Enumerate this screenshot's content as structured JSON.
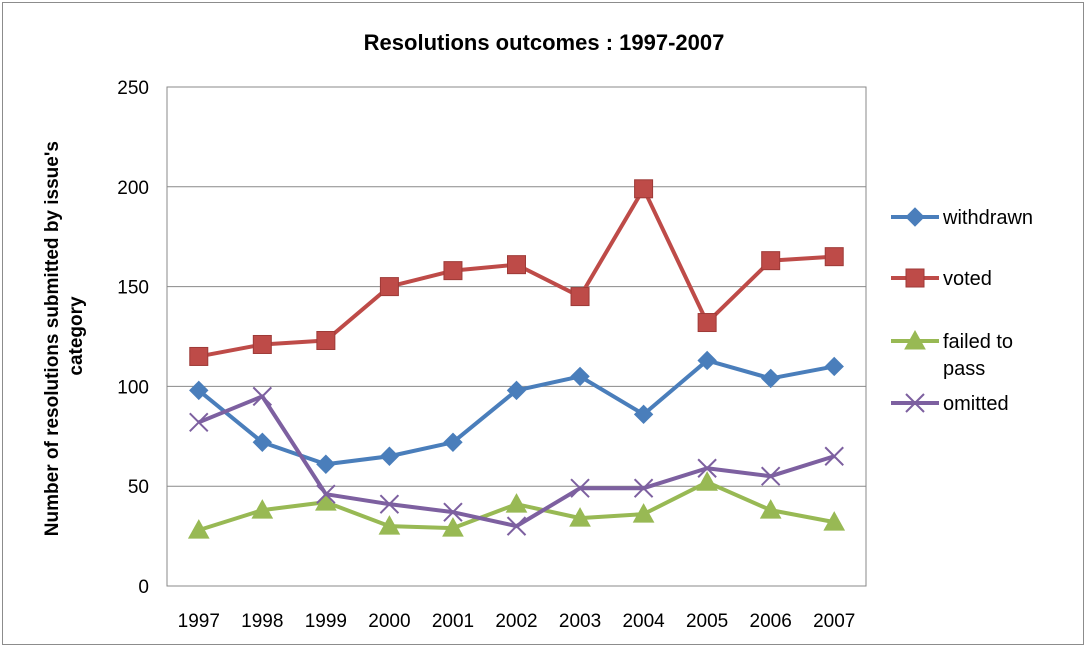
{
  "chart_data": {
    "type": "line",
    "title": "Resolutions outcomes : 1997-2007",
    "xlabel": "",
    "ylabel": "Number of resolutions submitted by issue's category",
    "ylabel_lines": [
      "Number of resolutions submitted by issue's",
      "category"
    ],
    "ylim": [
      0,
      250
    ],
    "yticks": [
      0,
      50,
      100,
      150,
      200,
      250
    ],
    "categories": [
      "1997",
      "1998",
      "1999",
      "2000",
      "2001",
      "2002",
      "2003",
      "2004",
      "2005",
      "2006",
      "2007"
    ],
    "grid": true,
    "legend_position": "right",
    "series": [
      {
        "name": "withdrawn",
        "name_lines": [
          "withdrawn"
        ],
        "color": "#4a7ebb",
        "marker": "diamond",
        "values": [
          98,
          72,
          61,
          65,
          72,
          98,
          105,
          86,
          113,
          104,
          110
        ]
      },
      {
        "name": "voted",
        "name_lines": [
          "voted"
        ],
        "color": "#be4b48",
        "marker": "square",
        "values": [
          115,
          121,
          123,
          150,
          158,
          161,
          145,
          199,
          132,
          163,
          165
        ]
      },
      {
        "name": "failed to pass",
        "name_lines": [
          "failed to",
          "pass"
        ],
        "color": "#98b954",
        "marker": "triangle",
        "values": [
          28,
          38,
          42,
          30,
          29,
          41,
          34,
          36,
          52,
          38,
          32
        ]
      },
      {
        "name": "omitted",
        "name_lines": [
          "omitted"
        ],
        "color": "#7d60a0",
        "marker": "x",
        "values": [
          82,
          95,
          46,
          41,
          37,
          30,
          49,
          49,
          59,
          55,
          65
        ]
      }
    ]
  }
}
